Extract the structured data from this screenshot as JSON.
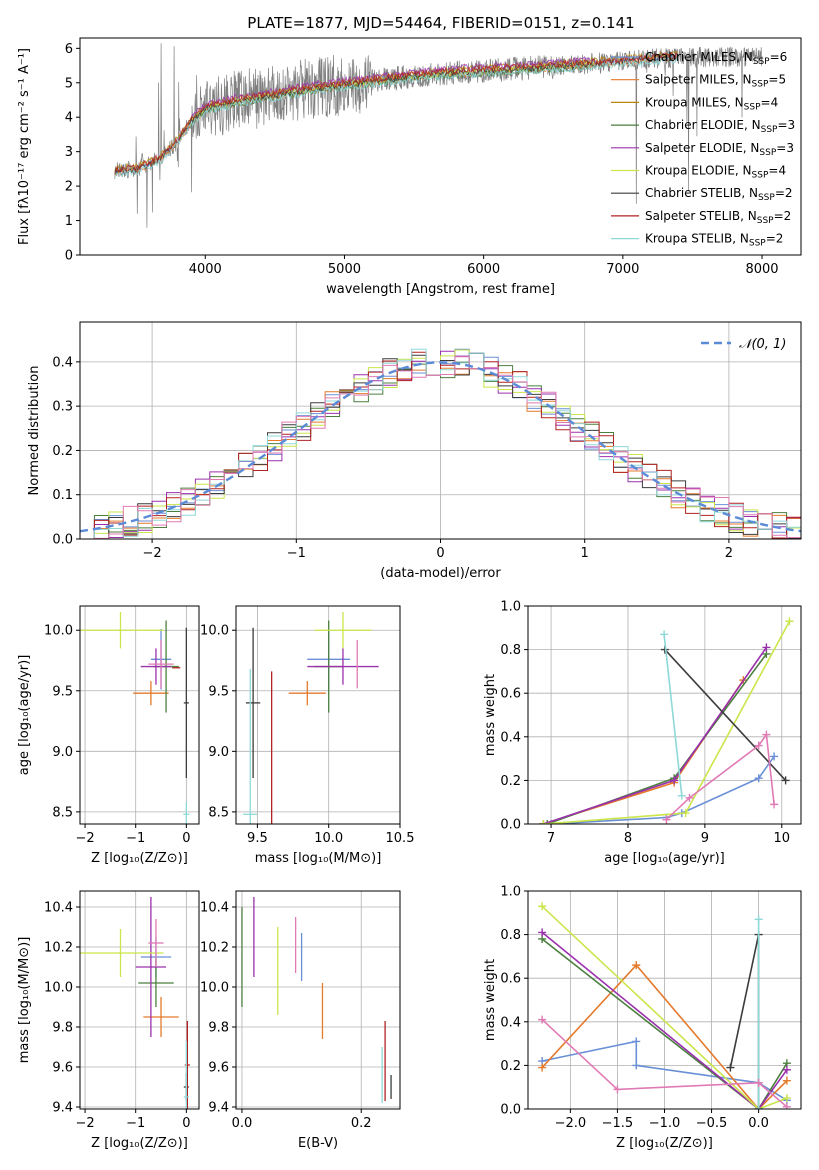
{
  "title": "PLATE=1877, MJD=54464, FIBERID=0151, z=0.141",
  "colors": {
    "series": [
      "#6a8fd6",
      "#e47a2a",
      "#b8860b",
      "#4b7f3f",
      "#9b30ad",
      "#c9e64a",
      "#3c3c3c",
      "#b22222",
      "#8fd8d8",
      "#e07ab5"
    ],
    "spectrum": "#808080",
    "grid": "#b0b0b0",
    "normal": "#5b8bd6"
  },
  "chart_data": [
    {
      "id": "spectrum",
      "type": "line",
      "xlabel": "wavelength [Angstrom, rest frame]",
      "ylabel": "Flux [fλ10⁻¹⁷ erg cm⁻² s⁻¹ A⁻¹]",
      "xlim": [
        3100,
        8280
      ],
      "ylim": [
        0,
        6.3
      ],
      "xticks": [
        4000,
        5000,
        6000,
        7000,
        8000
      ],
      "yticks": [
        0,
        1,
        2,
        3,
        4,
        5,
        6
      ],
      "grid": false,
      "legend_position": "top-right",
      "legend": [
        "Chabrier MILES, N_SSP=6",
        "Salpeter MILES, N_SSP=5",
        "Kroupa MILES, N_SSP=4",
        "Chabrier ELODIE, N_SSP=3",
        "Salpeter ELODIE, N_SSP=3",
        "Kroupa ELODIE, N_SSP=4",
        "Chabrier STELIB, N_SSP=2",
        "Salpeter STELIB, N_SSP=2",
        "Kroupa STELIB, N_SSP=2"
      ],
      "continuum": {
        "x": [
          3350,
          3500,
          3600,
          3700,
          3800,
          3900,
          4000,
          4200,
          4500,
          4800,
          5000,
          5200,
          5500,
          5800,
          6000,
          6300,
          6600,
          6900,
          7200,
          7400
        ],
        "y": [
          2.45,
          2.5,
          2.65,
          2.9,
          3.3,
          3.9,
          4.25,
          4.45,
          4.65,
          4.85,
          4.95,
          5.05,
          5.2,
          5.3,
          5.35,
          5.42,
          5.5,
          5.6,
          5.7,
          5.75
        ]
      },
      "data_x_range": [
        3350,
        8000
      ],
      "model_x_ranges": [
        [
          3350,
          7400
        ],
        [
          3350,
          7400
        ],
        [
          3350,
          7400
        ],
        [
          3900,
          6800
        ],
        [
          3900,
          6800
        ],
        [
          3900,
          6800
        ],
        [
          3350,
          7400
        ],
        [
          3350,
          7400
        ],
        [
          3350,
          7400
        ]
      ],
      "model_offsets": [
        0.02,
        -0.05,
        0.08,
        -0.08,
        0.12,
        0.0,
        -0.02,
        0.05,
        -0.1
      ]
    },
    {
      "id": "residuals",
      "type": "line",
      "xlabel": "(data-model)/error",
      "ylabel": "Normed distribution",
      "xlim": [
        -2.5,
        2.5
      ],
      "ylim": [
        0,
        0.49
      ],
      "xticks": [
        -2,
        -1,
        0,
        1,
        2
      ],
      "yticks": [
        0.0,
        0.1,
        0.2,
        0.3,
        0.4
      ],
      "grid": true,
      "legend_position": "top-right",
      "legend": [
        "𝒩(0, 1)"
      ],
      "bin_width": 0.1
    },
    {
      "id": "age_vs_z",
      "type": "scatter",
      "xlabel": "Z [log₁₀(Z/Z⊙)]",
      "ylabel": "age  [log₁₀(age/yr)]",
      "xlim": [
        -2.1,
        0.25
      ],
      "ylim": [
        8.4,
        10.2
      ],
      "xticks": [
        -2,
        -1,
        0
      ],
      "yticks": [
        8.5,
        9.0,
        9.5,
        10.0
      ],
      "grid": true,
      "points": [
        {
          "s": 0,
          "x": -0.5,
          "y": 9.76,
          "xe": 0.2,
          "ye": 0.25
        },
        {
          "s": 1,
          "x": -0.7,
          "y": 9.48,
          "xe": 0.35,
          "ye": 0.1
        },
        {
          "s": 3,
          "x": -0.4,
          "y": 9.7,
          "xe": 0.25,
          "ye": 0.38
        },
        {
          "s": 4,
          "x": -0.6,
          "y": 9.7,
          "xe": 0.3,
          "ye": 0.15
        },
        {
          "s": 5,
          "x": -1.3,
          "y": 10.0,
          "xe": 0.85,
          "ye": 0.15
        },
        {
          "s": 6,
          "x": 0.0,
          "y": 9.4,
          "xe": 0.05,
          "ye": 0.62
        },
        {
          "s": 7,
          "x": -0.2,
          "y": 9.69,
          "xe": 0.08,
          "ye": 0.0
        },
        {
          "s": 8,
          "x": 0.0,
          "y": 8.48,
          "xe": 0.06,
          "ye": 0.1
        },
        {
          "s": 9,
          "x": -0.5,
          "y": 9.72,
          "xe": 0.25,
          "ye": 0.2
        }
      ]
    },
    {
      "id": "age_vs_mass",
      "type": "scatter",
      "xlabel": "mass [log₁₀(M/M⊙)]",
      "ylabel": "",
      "xlim": [
        9.35,
        10.5
      ],
      "ylim": [
        8.4,
        10.2
      ],
      "xticks": [
        9.5,
        10.0,
        10.5
      ],
      "yticks": [
        8.5,
        9.0,
        9.5,
        10.0
      ],
      "grid": true,
      "points": [
        {
          "s": 0,
          "x": 10.0,
          "y": 9.76,
          "xe": 0.15,
          "ye": 0.25
        },
        {
          "s": 1,
          "x": 9.85,
          "y": 9.48,
          "xe": 0.13,
          "ye": 0.1
        },
        {
          "s": 3,
          "x": 10.0,
          "y": 9.7,
          "xe": 0.1,
          "ye": 0.38
        },
        {
          "s": 4,
          "x": 10.1,
          "y": 9.7,
          "xe": 0.25,
          "ye": 0.15
        },
        {
          "s": 5,
          "x": 10.1,
          "y": 10.0,
          "xe": 0.2,
          "ye": 0.15
        },
        {
          "s": 6,
          "x": 9.47,
          "y": 9.4,
          "xe": 0.05,
          "ye": 0.62
        },
        {
          "s": 7,
          "x": 9.6,
          "y": 9.0,
          "xe": 0.0,
          "ye": 0.66
        },
        {
          "s": 8,
          "x": 9.45,
          "y": 8.48,
          "xe": 0.05,
          "ye": 1.2
        },
        {
          "s": 9,
          "x": 10.2,
          "y": 9.72,
          "xe": 0.0,
          "ye": 0.2
        }
      ]
    },
    {
      "id": "weight_vs_age",
      "type": "line",
      "xlabel": "age  [log₁₀(age/yr)]",
      "ylabel": "mass weight",
      "xlim": [
        6.7,
        10.25
      ],
      "ylim": [
        0,
        1.0
      ],
      "xticks": [
        7,
        8,
        9,
        10
      ],
      "yticks": [
        0.0,
        0.2,
        0.4,
        0.6,
        0.8,
        1.0
      ],
      "grid": true,
      "series": [
        {
          "s": 0,
          "x": [
            7.0,
            8.5,
            8.7,
            9.7,
            9.9
          ],
          "y": [
            0.0,
            0.03,
            0.05,
            0.21,
            0.31
          ]
        },
        {
          "s": 1,
          "x": [
            6.9,
            8.6,
            9.5
          ],
          "y": [
            0.0,
            0.19,
            0.66
          ]
        },
        {
          "s": 3,
          "x": [
            6.95,
            8.6,
            9.8
          ],
          "y": [
            0.0,
            0.21,
            0.78
          ]
        },
        {
          "s": 4,
          "x": [
            6.9,
            8.6,
            9.8
          ],
          "y": [
            0.0,
            0.2,
            0.81
          ]
        },
        {
          "s": 5,
          "x": [
            6.9,
            8.75,
            10.1
          ],
          "y": [
            0.0,
            0.05,
            0.93
          ]
        },
        {
          "s": 6,
          "x": [
            8.48,
            10.05
          ],
          "y": [
            0.8,
            0.2
          ]
        },
        {
          "s": 8,
          "x": [
            8.47,
            8.7
          ],
          "y": [
            0.87,
            0.13
          ]
        },
        {
          "s": 9,
          "x": [
            8.5,
            8.8,
            9.7,
            9.8,
            9.9
          ],
          "y": [
            0.02,
            0.12,
            0.36,
            0.41,
            0.09
          ]
        }
      ]
    },
    {
      "id": "mass_vs_z",
      "type": "scatter",
      "xlabel": "Z [log₁₀(Z/Z⊙)]",
      "ylabel": "mass [log₁₀(M/M⊙)]",
      "xlim": [
        -2.1,
        0.25
      ],
      "ylim": [
        9.39,
        10.48
      ],
      "xticks": [
        -2,
        -1,
        0
      ],
      "yticks": [
        9.4,
        9.6,
        9.8,
        10.0,
        10.2,
        10.4
      ],
      "grid": true,
      "points": [
        {
          "s": 0,
          "x": -0.6,
          "y": 10.15,
          "xe": 0.3,
          "ye": 0.1
        },
        {
          "s": 1,
          "x": -0.5,
          "y": 9.85,
          "xe": 0.35,
          "ye": 0.1
        },
        {
          "s": 3,
          "x": -0.6,
          "y": 10.02,
          "xe": 0.35,
          "ye": 0.12
        },
        {
          "s": 4,
          "x": -0.7,
          "y": 10.1,
          "xe": 0.3,
          "ye": 0.35
        },
        {
          "s": 5,
          "x": -1.3,
          "y": 10.17,
          "xe": 0.85,
          "ye": 0.12
        },
        {
          "s": 6,
          "x": 0.0,
          "y": 9.5,
          "xe": 0.05,
          "ye": 0.07
        },
        {
          "s": 7,
          "x": 0.02,
          "y": 9.61,
          "xe": 0.05,
          "ye": 0.22
        },
        {
          "s": 8,
          "x": 0.0,
          "y": 9.45,
          "xe": 0.05,
          "ye": 0.28
        },
        {
          "s": 9,
          "x": -0.6,
          "y": 10.22,
          "xe": 0.15,
          "ye": 0.12
        }
      ]
    },
    {
      "id": "mass_vs_ebv",
      "type": "scatter",
      "xlabel": "E(B-V)",
      "ylabel": "",
      "xlim": [
        -0.01,
        0.265
      ],
      "ylim": [
        9.39,
        10.48
      ],
      "xticks": [
        0.0,
        0.2
      ],
      "yticks": [
        9.4,
        9.6,
        9.8,
        10.0,
        10.2,
        10.4
      ],
      "grid": true,
      "points": [
        {
          "s": 0,
          "x": 0.1,
          "y": 10.15,
          "xe": 0.0,
          "ye": 0.12
        },
        {
          "s": 1,
          "x": 0.135,
          "y": 9.88,
          "xe": 0.0,
          "ye": 0.14
        },
        {
          "s": 3,
          "x": 0.0,
          "y": 10.15,
          "xe": 0.0,
          "ye": 0.25
        },
        {
          "s": 4,
          "x": 0.02,
          "y": 10.25,
          "xe": 0.0,
          "ye": 0.2
        },
        {
          "s": 5,
          "x": 0.06,
          "y": 10.08,
          "xe": 0.0,
          "ye": 0.22
        },
        {
          "s": 6,
          "x": 0.25,
          "y": 9.5,
          "xe": 0.0,
          "ye": 0.06
        },
        {
          "s": 7,
          "x": 0.24,
          "y": 9.63,
          "xe": 0.0,
          "ye": 0.2
        },
        {
          "s": 8,
          "x": 0.235,
          "y": 9.56,
          "xe": 0.0,
          "ye": 0.14
        },
        {
          "s": 9,
          "x": 0.09,
          "y": 10.21,
          "xe": 0.0,
          "ye": 0.14
        }
      ]
    },
    {
      "id": "weight_vs_z",
      "type": "line",
      "xlabel": "Z [log₁₀(Z/Z⊙)]",
      "ylabel": "mass weight",
      "xlim": [
        -2.45,
        0.45
      ],
      "ylim": [
        0,
        1.0
      ],
      "xticks": [
        -2.0,
        -1.5,
        -1.0,
        -0.5,
        0.0
      ],
      "yticks": [
        0.0,
        0.2,
        0.4,
        0.6,
        0.8,
        1.0
      ],
      "grid": true,
      "series": [
        {
          "s": 0,
          "x": [
            -2.3,
            -1.3,
            -1.3,
            0.0,
            0.3
          ],
          "y": [
            0.22,
            0.31,
            0.2,
            0.12,
            0.04
          ]
        },
        {
          "s": 1,
          "x": [
            -2.3,
            -1.3,
            0.0,
            0.3
          ],
          "y": [
            0.19,
            0.66,
            0.0,
            0.13
          ]
        },
        {
          "s": 3,
          "x": [
            -2.3,
            0.0,
            0.3
          ],
          "y": [
            0.78,
            0.0,
            0.21
          ]
        },
        {
          "s": 4,
          "x": [
            -2.3,
            0.0,
            0.3
          ],
          "y": [
            0.81,
            0.0,
            0.18
          ]
        },
        {
          "s": 5,
          "x": [
            -2.3,
            0.0,
            0.3
          ],
          "y": [
            0.93,
            0.0,
            0.05
          ]
        },
        {
          "s": 6,
          "x": [
            -0.3,
            0.0,
            0.0
          ],
          "y": [
            0.19,
            0.8,
            0.0
          ]
        },
        {
          "s": 8,
          "x": [
            0.0,
            0.0
          ],
          "y": [
            0.87,
            0.0
          ]
        },
        {
          "s": 9,
          "x": [
            -2.3,
            -1.5,
            0.0,
            0.3
          ],
          "y": [
            0.41,
            0.09,
            0.12,
            0.01
          ]
        }
      ]
    }
  ]
}
